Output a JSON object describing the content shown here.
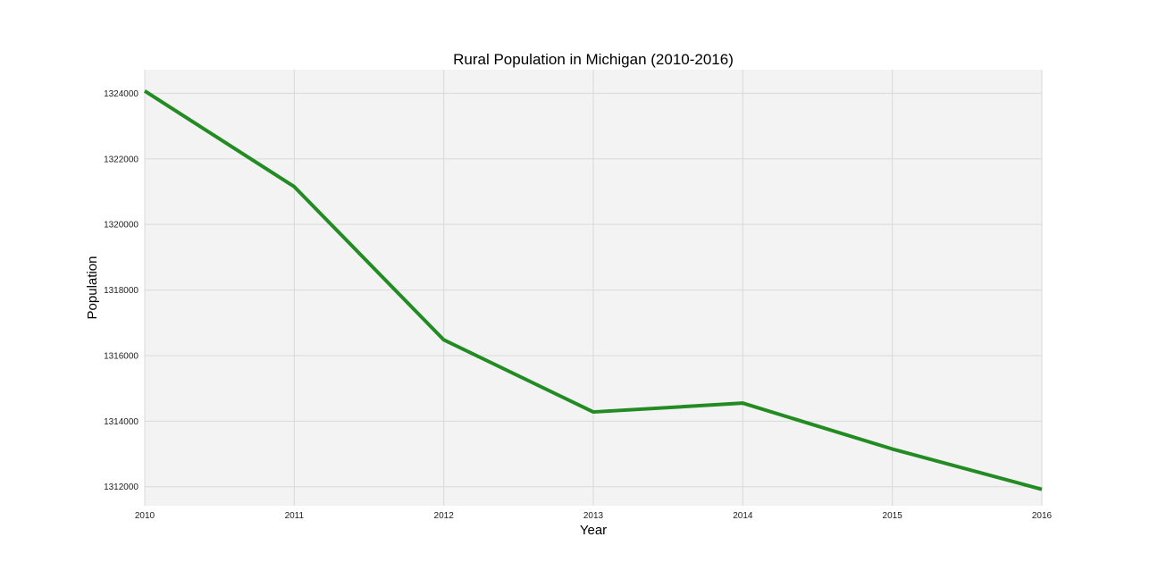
{
  "chart_data": {
    "type": "line",
    "title": "Rural Population in Michigan (2010-2016)",
    "xlabel": "Year",
    "ylabel": "Population",
    "x": [
      2010,
      2011,
      2012,
      2013,
      2014,
      2015,
      2016
    ],
    "series": [
      {
        "values": [
          1324070,
          1321150,
          1316480,
          1314280,
          1314550,
          1313150,
          1311920
        ],
        "color": "#228B22"
      }
    ],
    "xticks": [
      "2010",
      "2011",
      "2012",
      "2013",
      "2014",
      "2015",
      "2016"
    ],
    "yticks": [
      "1312000",
      "1314000",
      "1316000",
      "1318000",
      "1320000",
      "1322000",
      "1324000"
    ],
    "xlim": [
      2010,
      2016
    ],
    "ylim": [
      1311420,
      1324720
    ],
    "grid": true,
    "background_color": "#f3f3f3"
  }
}
